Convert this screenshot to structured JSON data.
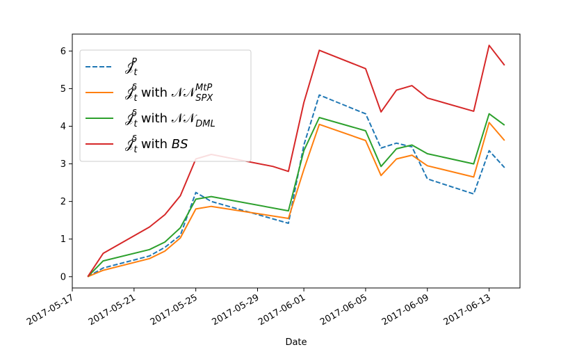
{
  "chart_data": {
    "type": "line",
    "xlabel": "Date",
    "ylabel": "",
    "title": "",
    "xlim": [
      "2017-05-17",
      "2017-06-15"
    ],
    "ylim": [
      -0.3,
      6.45
    ],
    "x_ticks": [
      "2017-05-17",
      "2017-05-21",
      "2017-05-25",
      "2017-05-29",
      "2017-06-01",
      "2017-06-05",
      "2017-06-09",
      "2017-06-13"
    ],
    "y_ticks": [
      0,
      1,
      2,
      3,
      4,
      5,
      6
    ],
    "x_tick_labels_rotated": true,
    "legend_position": "upper-left",
    "grid": false,
    "series": [
      {
        "name_parts": [
          {
            "t": "𝒥",
            "s": "main"
          },
          {
            "t": "t",
            "s": "sub"
          },
          {
            "t": "P",
            "s": "sup"
          }
        ],
        "color": "#1f77b4",
        "dashed": true,
        "points": [
          [
            "2017-05-18",
            0.0
          ],
          [
            "2017-05-19",
            0.23
          ],
          [
            "2017-05-22",
            0.55
          ],
          [
            "2017-05-23",
            0.78
          ],
          [
            "2017-05-24",
            1.1
          ],
          [
            "2017-05-25",
            2.24
          ],
          [
            "2017-05-26",
            2.0
          ],
          [
            "2017-05-31",
            1.42
          ],
          [
            "2017-06-01",
            3.5
          ],
          [
            "2017-06-02",
            4.83
          ],
          [
            "2017-06-05",
            4.33
          ],
          [
            "2017-06-06",
            3.42
          ],
          [
            "2017-06-07",
            3.55
          ],
          [
            "2017-06-08",
            3.45
          ],
          [
            "2017-06-09",
            2.6
          ],
          [
            "2017-06-12",
            2.2
          ],
          [
            "2017-06-13",
            3.35
          ],
          [
            "2017-06-14",
            2.9
          ]
        ]
      },
      {
        "name_parts": [
          {
            "t": "𝒥",
            "s": "main"
          },
          {
            "t": "t",
            "s": "sub"
          },
          {
            "t": "δ",
            "s": "sup"
          },
          {
            "t": " with ",
            "s": "main"
          },
          {
            "t": "𝒩𝒩",
            "s": "main"
          },
          {
            "t": "SPX",
            "s": "sub"
          },
          {
            "t": "MtP",
            "s": "sup"
          }
        ],
        "color": "#ff7f0e",
        "dashed": false,
        "points": [
          [
            "2017-05-18",
            0.0
          ],
          [
            "2017-05-19",
            0.17
          ],
          [
            "2017-05-22",
            0.48
          ],
          [
            "2017-05-23",
            0.68
          ],
          [
            "2017-05-24",
            1.03
          ],
          [
            "2017-05-25",
            1.8
          ],
          [
            "2017-05-26",
            1.87
          ],
          [
            "2017-05-31",
            1.55
          ],
          [
            "2017-06-01",
            2.85
          ],
          [
            "2017-06-02",
            4.05
          ],
          [
            "2017-06-05",
            3.62
          ],
          [
            "2017-06-06",
            2.69
          ],
          [
            "2017-06-07",
            3.13
          ],
          [
            "2017-06-08",
            3.23
          ],
          [
            "2017-06-09",
            2.95
          ],
          [
            "2017-06-12",
            2.65
          ],
          [
            "2017-06-13",
            4.1
          ],
          [
            "2017-06-14",
            3.62
          ]
        ]
      },
      {
        "name_parts": [
          {
            "t": "𝒥",
            "s": "main"
          },
          {
            "t": "t",
            "s": "sub"
          },
          {
            "t": "δ",
            "s": "sup"
          },
          {
            "t": " with ",
            "s": "main"
          },
          {
            "t": "𝒩𝒩",
            "s": "main"
          },
          {
            "t": "DML",
            "s": "sub"
          }
        ],
        "color": "#2ca02c",
        "dashed": false,
        "points": [
          [
            "2017-05-18",
            0.0
          ],
          [
            "2017-05-19",
            0.42
          ],
          [
            "2017-05-22",
            0.72
          ],
          [
            "2017-05-23",
            0.92
          ],
          [
            "2017-05-24",
            1.3
          ],
          [
            "2017-05-25",
            2.06
          ],
          [
            "2017-05-26",
            2.13
          ],
          [
            "2017-05-31",
            1.75
          ],
          [
            "2017-06-01",
            3.35
          ],
          [
            "2017-06-02",
            4.23
          ],
          [
            "2017-06-05",
            3.88
          ],
          [
            "2017-06-06",
            2.93
          ],
          [
            "2017-06-07",
            3.4
          ],
          [
            "2017-06-08",
            3.5
          ],
          [
            "2017-06-09",
            3.27
          ],
          [
            "2017-06-12",
            3.0
          ],
          [
            "2017-06-13",
            4.33
          ],
          [
            "2017-06-14",
            4.03
          ]
        ]
      },
      {
        "name_parts": [
          {
            "t": "𝒥",
            "s": "main"
          },
          {
            "t": "t",
            "s": "sub"
          },
          {
            "t": "δ",
            "s": "sup"
          },
          {
            "t": " with ",
            "s": "main"
          },
          {
            "t": "BS",
            "s": "italic"
          }
        ],
        "color": "#d62728",
        "dashed": false,
        "points": [
          [
            "2017-05-18",
            0.0
          ],
          [
            "2017-05-19",
            0.62
          ],
          [
            "2017-05-22",
            1.32
          ],
          [
            "2017-05-23",
            1.65
          ],
          [
            "2017-05-24",
            2.15
          ],
          [
            "2017-05-25",
            3.13
          ],
          [
            "2017-05-26",
            3.25
          ],
          [
            "2017-05-30",
            2.93
          ],
          [
            "2017-05-31",
            2.8
          ],
          [
            "2017-06-01",
            4.63
          ],
          [
            "2017-06-02",
            6.02
          ],
          [
            "2017-06-05",
            5.53
          ],
          [
            "2017-06-06",
            4.38
          ],
          [
            "2017-06-07",
            4.96
          ],
          [
            "2017-06-08",
            5.08
          ],
          [
            "2017-06-09",
            4.75
          ],
          [
            "2017-06-12",
            4.4
          ],
          [
            "2017-06-13",
            6.15
          ],
          [
            "2017-06-14",
            5.62
          ]
        ]
      }
    ]
  }
}
